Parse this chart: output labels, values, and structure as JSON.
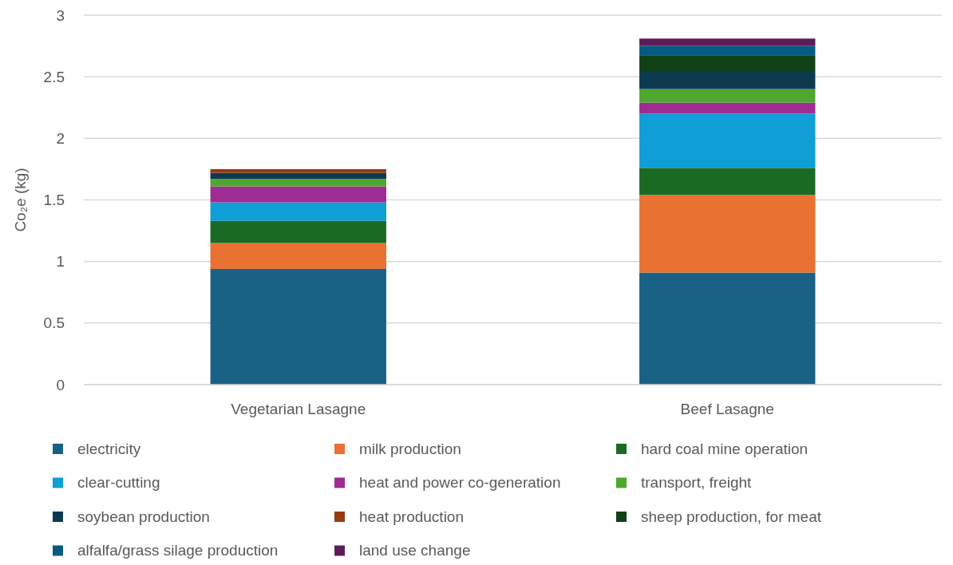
{
  "chart_data": {
    "type": "bar",
    "stacked": true,
    "ylabel": "Co₂e (kg)",
    "categories": [
      "Vegetarian Lasagne",
      "Beef Lasagne"
    ],
    "ylim": [
      0,
      3
    ],
    "yticks": [
      0,
      0.5,
      1,
      1.5,
      2,
      2.5,
      3
    ],
    "grid": "y",
    "legend": "bottom",
    "series": [
      {
        "name": "electricity",
        "color": "#196286",
        "values": [
          0.94,
          0.91
        ]
      },
      {
        "name": "milk production",
        "color": "#e97132",
        "values": [
          0.21,
          0.63
        ]
      },
      {
        "name": "hard coal mine operation",
        "color": "#1b6a24",
        "values": [
          0.18,
          0.22
        ]
      },
      {
        "name": "clear-cutting",
        "color": "#0f9ed5",
        "values": [
          0.15,
          0.44
        ]
      },
      {
        "name": "heat and power co-generation",
        "color": "#a02b93",
        "values": [
          0.13,
          0.09
        ]
      },
      {
        "name": "transport, freight",
        "color": "#4ea72e",
        "values": [
          0.06,
          0.11
        ]
      },
      {
        "name": "soybean production",
        "color": "#0e3a50",
        "values": [
          0.05,
          0.14
        ]
      },
      {
        "name": "heat production",
        "color": "#953c10",
        "values": [
          0.03,
          null
        ]
      },
      {
        "name": "sheep production, for meat",
        "color": "#0f4016",
        "values": [
          null,
          0.13
        ]
      },
      {
        "name": "alfalfa/grass silage production",
        "color": "#075b80",
        "values": [
          null,
          0.08
        ]
      },
      {
        "name": "land use change",
        "color": "#5c1d57",
        "values": [
          null,
          0.06
        ]
      }
    ]
  }
}
